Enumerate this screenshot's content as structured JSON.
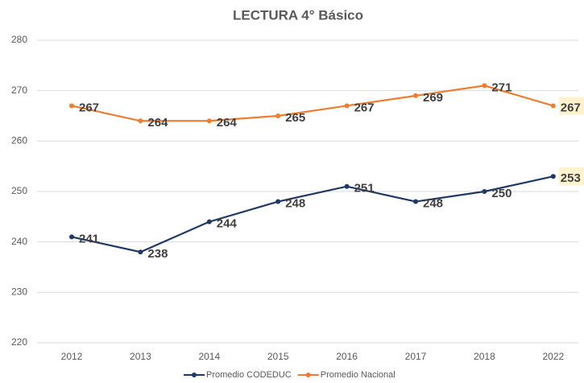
{
  "chart_data": {
    "type": "line",
    "title": "LECTURA 4° Básico",
    "categories": [
      "2012",
      "2013",
      "2014",
      "2015",
      "2016",
      "2017",
      "2018",
      "2022"
    ],
    "series": [
      {
        "name": "Promedio CODEDUC",
        "color": "#1f3864",
        "values": [
          241,
          238,
          244,
          248,
          251,
          248,
          250,
          253
        ]
      },
      {
        "name": "Promedio Nacional",
        "color": "#ed7d31",
        "values": [
          267,
          264,
          264,
          265,
          267,
          269,
          271,
          267
        ]
      }
    ],
    "ylim": [
      220,
      280
    ],
    "yticks": [
      220,
      230,
      240,
      250,
      260,
      270,
      280
    ],
    "grid": true,
    "legend": "bottom"
  }
}
